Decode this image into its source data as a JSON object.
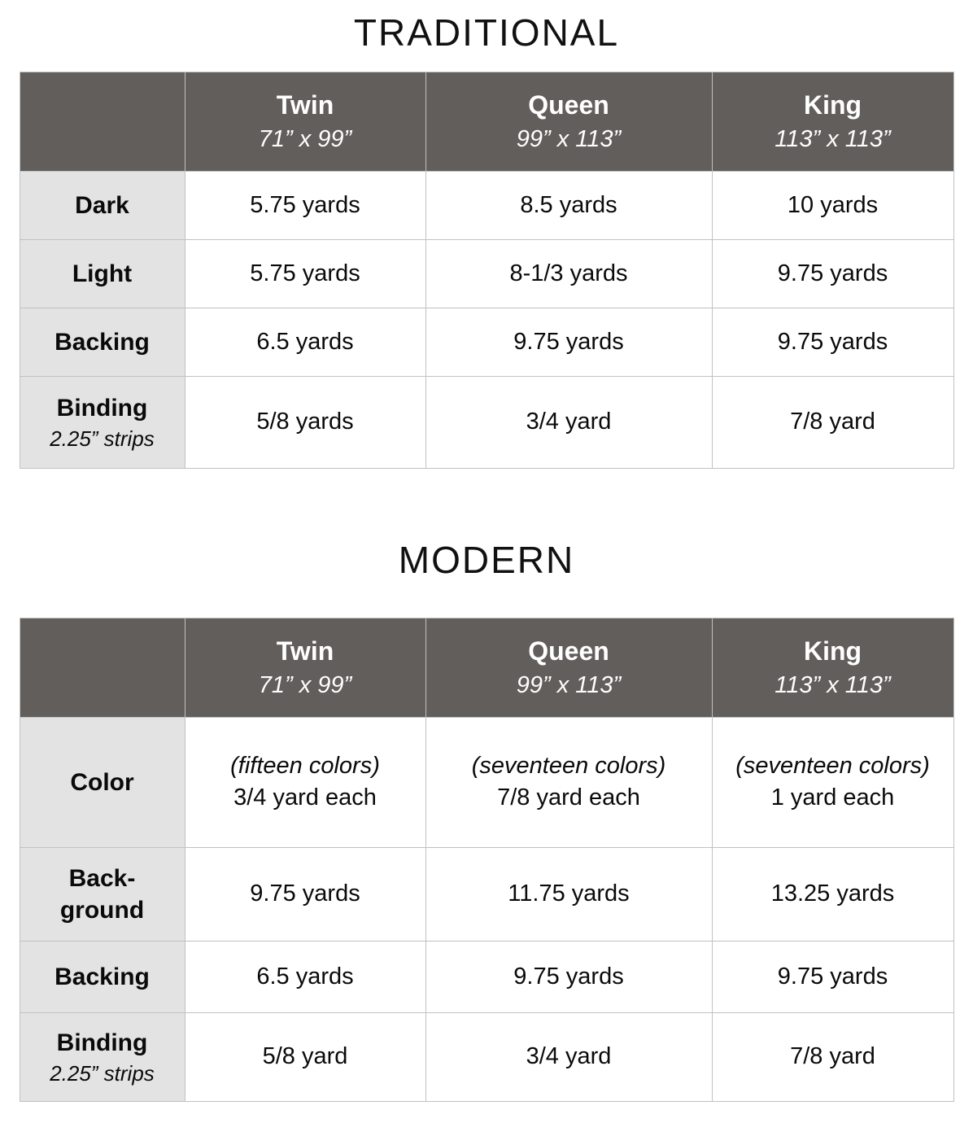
{
  "colors": {
    "header_background": "#625E5B",
    "header_text": "#FFFFFF",
    "label_background": "#E3E3E4",
    "border": "#C1C1C1",
    "text": "#0A0A0A"
  },
  "tables": [
    {
      "title": "TRADITIONAL",
      "columns": [
        {
          "name": "Twin",
          "size": "71” x 99”"
        },
        {
          "name": "Queen",
          "size": "99” x 113”"
        },
        {
          "name": "King",
          "size": "113” x 113”"
        }
      ],
      "rows": [
        {
          "label": "Dark",
          "values": [
            "5.75 yards",
            "8.5 yards",
            "10 yards"
          ]
        },
        {
          "label": "Light",
          "values": [
            "5.75 yards",
            "8-1/3 yards",
            "9.75 yards"
          ]
        },
        {
          "label": "Backing",
          "values": [
            "6.5 yards",
            "9.75 yards",
            "9.75 yards"
          ]
        },
        {
          "label": "Binding",
          "sublabel": "2.25” strips",
          "values": [
            "5/8 yards",
            "3/4 yard",
            "7/8 yard"
          ]
        }
      ]
    },
    {
      "title": "MODERN",
      "columns": [
        {
          "name": "Twin",
          "size": "71” x 99”"
        },
        {
          "name": "Queen",
          "size": "99” x 113”"
        },
        {
          "name": "King",
          "size": "113” x 113”"
        }
      ],
      "rows": [
        {
          "label": "Color",
          "cells": [
            {
              "note": "(fifteen colors)",
              "value": "3/4 yard each"
            },
            {
              "note": "(seventeen colors)",
              "value": "7/8 yard each"
            },
            {
              "note": "(seventeen colors)",
              "value": "1 yard each"
            }
          ]
        },
        {
          "label": "Back-\nground",
          "values": [
            "9.75 yards",
            "11.75 yards",
            "13.25 yards"
          ]
        },
        {
          "label": "Backing",
          "values": [
            "6.5 yards",
            "9.75 yards",
            "9.75 yards"
          ]
        },
        {
          "label": "Binding",
          "sublabel": "2.25” strips",
          "values": [
            "5/8 yard",
            "3/4 yard",
            "7/8 yard"
          ]
        }
      ]
    }
  ]
}
